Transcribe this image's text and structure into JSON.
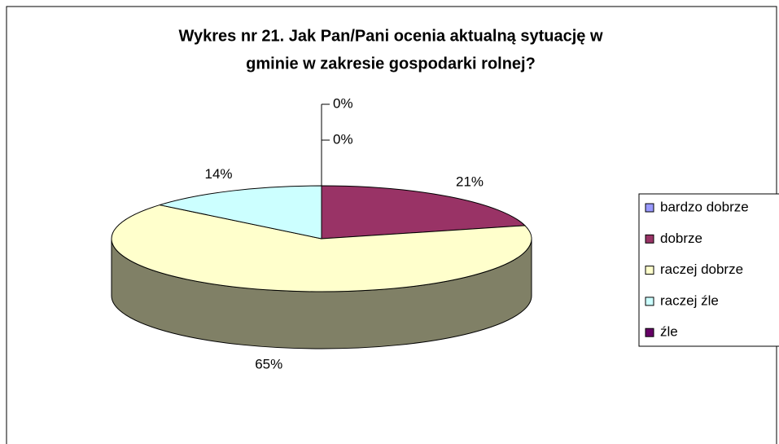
{
  "chart_data": {
    "type": "pie",
    "title": [
      "Wykres nr 21. Jak Pan/Pani ocenia aktualną sytuację w",
      "gminie w zakresie gospodarki rolnej?"
    ],
    "categories": [
      "bardzo dobrze",
      "dobrze",
      "raczej dobrze",
      "raczej źle",
      "źle"
    ],
    "values": [
      0,
      21,
      65,
      14,
      0
    ],
    "value_labels": [
      "0%",
      "21%",
      "65%",
      "14%",
      "0%"
    ],
    "colors": [
      "#9999ff",
      "#993366",
      "#ffffcc",
      "#ccffff",
      "#660066"
    ],
    "legend": "right"
  }
}
